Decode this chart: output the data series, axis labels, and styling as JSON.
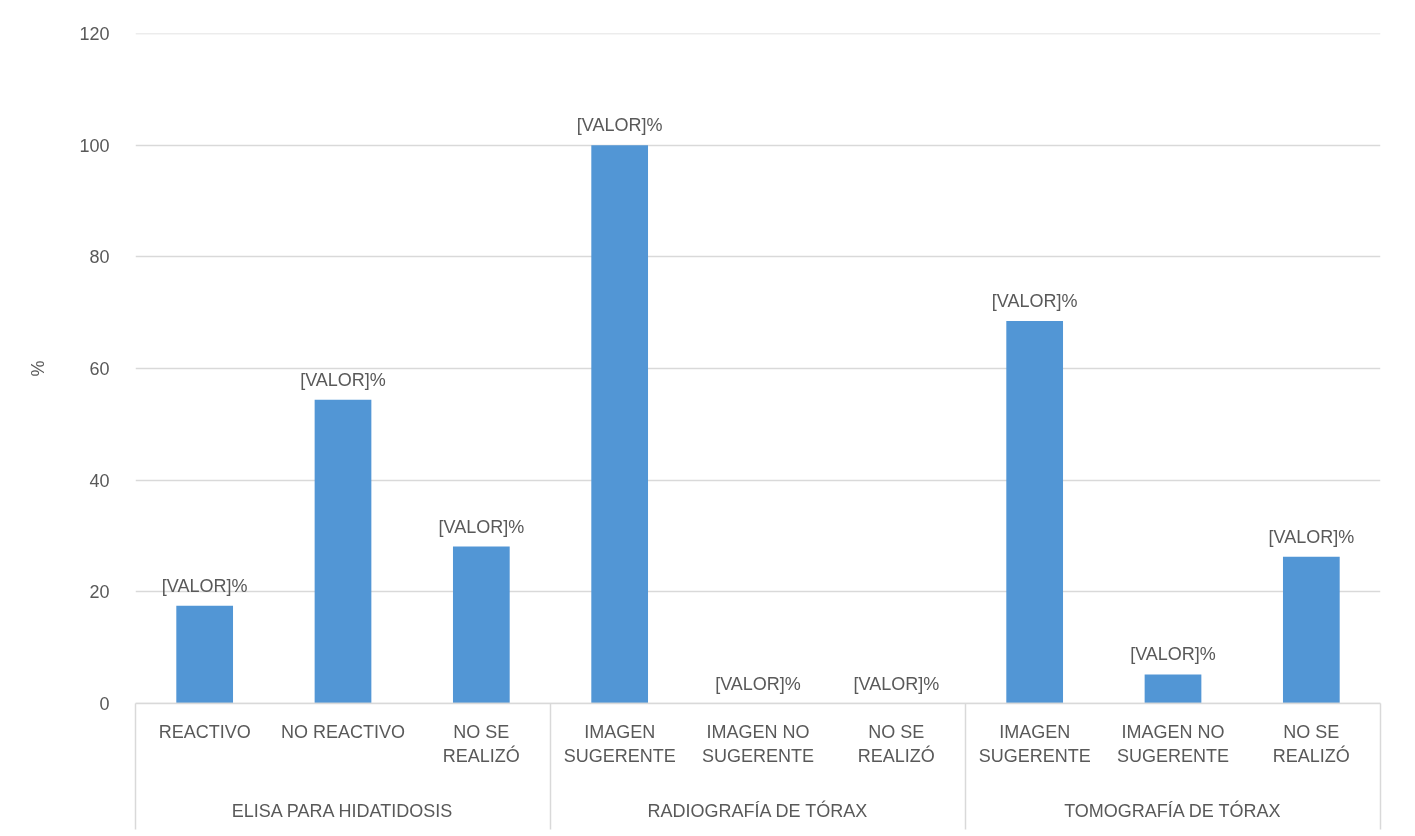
{
  "chart_data": {
    "type": "bar",
    "ylabel": "%",
    "categories": [
      "REACTIVO",
      "NO REACTIVO",
      "NO SE REALIZÓ",
      "IMAGEN SUGERENTE",
      "IMAGEN NO SUGERENTE",
      "NO SE REALIZÓ",
      "IMAGEN SUGERENTE",
      "IMAGEN NO SUGERENTE",
      "NO SE REALIZÓ"
    ],
    "values": [
      17.5,
      54.4,
      28.1,
      100,
      0,
      0,
      68.5,
      5.2,
      26.3
    ],
    "color": "#5296d5",
    "value_labels": [
      "[VALOR]%",
      "[VALOR]%",
      "[VALOR]%",
      "[VALOR]%",
      "[VALOR]%",
      "[VALOR]%",
      "[VALOR]%",
      "[VALOR]%",
      "[VALOR]%"
    ],
    "annotations": [
      "ELISA PARA HIDATIDOSIS",
      "RADIOGRAFÍA DE TÓRAX",
      "TOMOGRAFÍA DE TÓRAX"
    ],
    "ylim": [
      0,
      120
    ],
    "yticks": [
      0,
      20,
      40,
      60,
      80,
      100,
      120
    ],
    "grid": "y"
  }
}
